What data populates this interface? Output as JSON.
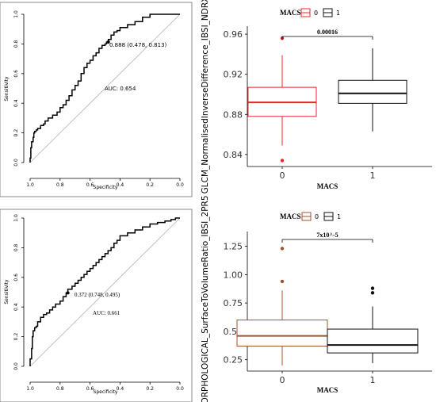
{
  "chart_data": [
    {
      "type": "line",
      "panel": "top-left ROC curve",
      "xlabel": "Specificity",
      "ylabel": "Sensitivity",
      "xlim": [
        1.0,
        0.0
      ],
      "ylim": [
        0.0,
        1.0
      ],
      "x_ticks": [
        "1.0",
        "0.8",
        "0.6",
        "0.4",
        "0.2",
        "0.0"
      ],
      "y_ticks": [
        "0.0",
        "0.2",
        "0.4",
        "0.6",
        "0.8",
        "1.0"
      ],
      "auc_label": "AUC: 0.654",
      "threshold_label": "0.888 (0.478, 0.813)",
      "threshold_point": {
        "specificity": 0.478,
        "sensitivity": 0.813
      },
      "reference_line": "diagonal",
      "curve": {
        "specificity": [
          1.0,
          0.995,
          0.99,
          0.98,
          0.975,
          0.97,
          0.96,
          0.95,
          0.93,
          0.91,
          0.9,
          0.88,
          0.85,
          0.82,
          0.8,
          0.78,
          0.76,
          0.74,
          0.72,
          0.7,
          0.68,
          0.66,
          0.64,
          0.62,
          0.6,
          0.58,
          0.56,
          0.54,
          0.52,
          0.5,
          0.49,
          0.478,
          0.46,
          0.44,
          0.42,
          0.4,
          0.35,
          0.3,
          0.25,
          0.2,
          0.15,
          0.1,
          0.05,
          0.0
        ],
        "sensitivity": [
          0.0,
          0.03,
          0.1,
          0.14,
          0.17,
          0.2,
          0.21,
          0.22,
          0.23,
          0.25,
          0.26,
          0.28,
          0.3,
          0.32,
          0.34,
          0.37,
          0.39,
          0.42,
          0.45,
          0.49,
          0.52,
          0.55,
          0.6,
          0.64,
          0.67,
          0.69,
          0.72,
          0.74,
          0.77,
          0.79,
          0.8,
          0.813,
          0.83,
          0.86,
          0.88,
          0.89,
          0.91,
          0.93,
          0.95,
          0.98,
          1.0,
          1.0,
          1.0,
          1.0
        ]
      }
    },
    {
      "type": "box",
      "panel": "top-right boxplot",
      "ylabel": "GLCM_NormalisedInverseDifference_IBSI_NDRX",
      "xlabel": "MACS",
      "categories": [
        "0",
        "1"
      ],
      "legend_title": "MACS",
      "legend_items": [
        "0",
        "1"
      ],
      "colors": {
        "0": "#e8262a",
        "1": "#111111"
      },
      "y_ticks": [
        "0.84",
        "0.88",
        "0.92",
        "0.96"
      ],
      "ylim": [
        0.828,
        0.968
      ],
      "boxes": [
        {
          "group": "0",
          "whisker_low": 0.849,
          "q1": 0.878,
          "median": 0.892,
          "q3": 0.907,
          "whisker_high": 0.939,
          "outliers": [
            0.956,
            0.834
          ]
        },
        {
          "group": "1",
          "whisker_low": 0.863,
          "q1": 0.891,
          "median": 0.901,
          "q3": 0.914,
          "whisker_high": 0.946,
          "outliers": []
        }
      ],
      "p_value": "0.00016"
    },
    {
      "type": "line",
      "panel": "bottom-left ROC curve",
      "xlabel": "Specificity",
      "ylabel": "Sensitivity",
      "xlim": [
        1.0,
        0.0
      ],
      "ylim": [
        0.0,
        1.0
      ],
      "x_ticks": [
        "1.0",
        "0.8",
        "0.6",
        "0.4",
        "0.2",
        "0.0"
      ],
      "y_ticks": [
        "0.0",
        "0.2",
        "0.4",
        "0.6",
        "0.8",
        "1.0"
      ],
      "auc_label": "AUC: 0.661",
      "threshold_label": "0.372 (0.748, 0.495)",
      "threshold_point": {
        "specificity": 0.748,
        "sensitivity": 0.495
      },
      "reference_line": "diagonal",
      "curve": {
        "specificity": [
          1.0,
          0.99,
          0.985,
          0.98,
          0.97,
          0.96,
          0.95,
          0.93,
          0.91,
          0.89,
          0.87,
          0.85,
          0.83,
          0.8,
          0.78,
          0.76,
          0.748,
          0.72,
          0.7,
          0.68,
          0.66,
          0.64,
          0.62,
          0.6,
          0.58,
          0.56,
          0.54,
          0.52,
          0.5,
          0.48,
          0.46,
          0.44,
          0.42,
          0.4,
          0.35,
          0.3,
          0.25,
          0.2,
          0.15,
          0.1,
          0.06,
          0.03,
          0.0
        ],
        "sensitivity": [
          0.0,
          0.05,
          0.12,
          0.2,
          0.24,
          0.26,
          0.27,
          0.3,
          0.33,
          0.35,
          0.36,
          0.38,
          0.4,
          0.42,
          0.44,
          0.47,
          0.495,
          0.52,
          0.54,
          0.56,
          0.58,
          0.6,
          0.62,
          0.64,
          0.66,
          0.68,
          0.7,
          0.72,
          0.74,
          0.76,
          0.78,
          0.8,
          0.83,
          0.85,
          0.88,
          0.9,
          0.92,
          0.94,
          0.96,
          0.97,
          0.98,
          0.99,
          1.0
        ]
      }
    },
    {
      "type": "box",
      "panel": "bottom-right boxplot",
      "ylabel": "ORPHOLOGICAL_SurfaceToVolumeRatio_IBSI_2PR5",
      "xlabel": "MACS",
      "categories": [
        "0",
        "1"
      ],
      "legend_title": "MACS",
      "legend_items": [
        "0",
        "1"
      ],
      "colors": {
        "0": "#a0522d",
        "1": "#111111"
      },
      "y_ticks": [
        "0.25",
        "0.50",
        "0.75",
        "1.00",
        "1.25"
      ],
      "ylim": [
        0.15,
        1.38
      ],
      "boxes": [
        {
          "group": "0",
          "whisker_low": 0.2,
          "q1": 0.37,
          "median": 0.46,
          "q3": 0.6,
          "whisker_high": 0.86,
          "outliers": [
            1.23,
            0.94
          ]
        },
        {
          "group": "1",
          "whisker_low": 0.22,
          "q1": 0.31,
          "median": 0.38,
          "q3": 0.52,
          "whisker_high": 0.72,
          "outliers": [
            0.88,
            0.84
          ]
        }
      ],
      "p_value": "7x10^-5"
    }
  ]
}
